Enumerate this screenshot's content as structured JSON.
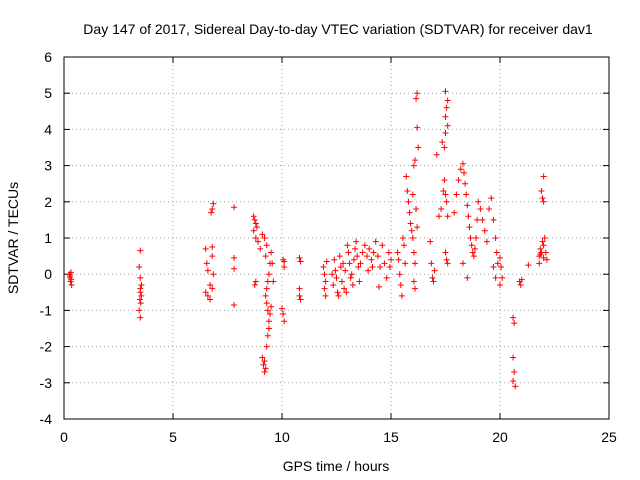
{
  "chart_data": {
    "type": "scatter",
    "title": "Day 147 of 2017, Sidereal Day-to-day VTEC variation (SDTVAR) for receiver dav1",
    "xlabel": "GPS time / hours",
    "ylabel": "SDTVAR / TECUs",
    "xlim": [
      0,
      25
    ],
    "ylim": [
      -4,
      6
    ],
    "xticks": [
      0,
      5,
      10,
      15,
      20,
      25
    ],
    "yticks": [
      -4,
      -3,
      -2,
      -1,
      0,
      1,
      2,
      3,
      4,
      5,
      6
    ],
    "xtick_labels": [
      "0",
      "5",
      "10",
      "15",
      "20",
      "25"
    ],
    "ytick_labels": [
      "-4",
      "-3",
      "-2",
      "-1",
      "0",
      "1",
      "2",
      "3",
      "4",
      "5",
      "6"
    ],
    "grid": true,
    "legend": "none",
    "marker": "+",
    "color": "#ff0000",
    "series": [
      {
        "name": "dav1",
        "points": [
          [
            0.25,
            0.0
          ],
          [
            0.28,
            -0.1
          ],
          [
            0.3,
            -0.2
          ],
          [
            0.32,
            0.05
          ],
          [
            0.35,
            -0.3
          ],
          [
            0.27,
            -0.05
          ],
          [
            0.33,
            -0.15
          ],
          [
            3.5,
            0.65
          ],
          [
            3.45,
            0.2
          ],
          [
            3.5,
            -0.1
          ],
          [
            3.55,
            -0.3
          ],
          [
            3.5,
            -0.5
          ],
          [
            3.48,
            -0.7
          ],
          [
            3.52,
            -0.8
          ],
          [
            3.45,
            -1.0
          ],
          [
            3.5,
            -1.2
          ],
          [
            3.55,
            -0.6
          ],
          [
            3.5,
            -0.4
          ],
          [
            6.5,
            0.7
          ],
          [
            6.55,
            0.3
          ],
          [
            6.6,
            0.1
          ],
          [
            6.5,
            -0.5
          ],
          [
            6.6,
            -0.6
          ],
          [
            6.7,
            -0.7
          ],
          [
            6.8,
            0.75
          ],
          [
            6.8,
            0.5
          ],
          [
            6.85,
            0.0
          ],
          [
            6.75,
            1.7
          ],
          [
            6.8,
            1.8
          ],
          [
            6.85,
            1.95
          ],
          [
            6.8,
            -0.4
          ],
          [
            6.7,
            -0.3
          ],
          [
            7.8,
            1.85
          ],
          [
            7.8,
            0.45
          ],
          [
            7.8,
            0.15
          ],
          [
            7.8,
            -0.85
          ],
          [
            8.7,
            1.6
          ],
          [
            8.75,
            1.5
          ],
          [
            8.8,
            1.4
          ],
          [
            8.85,
            1.3
          ],
          [
            8.7,
            1.2
          ],
          [
            8.8,
            1.0
          ],
          [
            8.9,
            0.9
          ],
          [
            9.0,
            0.7
          ],
          [
            8.75,
            -0.3
          ],
          [
            8.8,
            -0.2
          ],
          [
            9.1,
            1.1
          ],
          [
            9.2,
            1.0
          ],
          [
            9.3,
            0.8
          ],
          [
            9.25,
            0.5
          ],
          [
            9.1,
            -2.3
          ],
          [
            9.15,
            -2.5
          ],
          [
            9.2,
            -2.7
          ],
          [
            9.25,
            -2.6
          ],
          [
            9.2,
            -2.4
          ],
          [
            9.3,
            -2.0
          ],
          [
            9.35,
            -1.7
          ],
          [
            9.4,
            -1.5
          ],
          [
            9.4,
            -1.3
          ],
          [
            9.35,
            -1.0
          ],
          [
            9.3,
            -0.8
          ],
          [
            9.25,
            -0.6
          ],
          [
            9.3,
            -0.4
          ],
          [
            9.35,
            -0.2
          ],
          [
            9.4,
            0.0
          ],
          [
            9.45,
            0.3
          ],
          [
            9.5,
            0.6
          ],
          [
            9.55,
            0.3
          ],
          [
            9.6,
            -0.2
          ],
          [
            9.5,
            -0.9
          ],
          [
            9.45,
            -1.1
          ],
          [
            10.0,
            -0.95
          ],
          [
            10.05,
            -1.1
          ],
          [
            10.1,
            -1.3
          ],
          [
            10.1,
            0.35
          ],
          [
            10.1,
            0.2
          ],
          [
            10.05,
            0.4
          ],
          [
            10.8,
            0.45
          ],
          [
            10.85,
            0.35
          ],
          [
            10.8,
            -0.6
          ],
          [
            10.85,
            -0.7
          ],
          [
            10.8,
            -0.4
          ],
          [
            11.9,
            0.2
          ],
          [
            11.95,
            0.0
          ],
          [
            12.0,
            -0.2
          ],
          [
            11.95,
            -0.4
          ],
          [
            12.0,
            -0.6
          ],
          [
            12.05,
            0.35
          ],
          [
            12.3,
            0.0
          ],
          [
            12.35,
            -0.3
          ],
          [
            12.4,
            0.4
          ],
          [
            12.45,
            0.1
          ],
          [
            12.5,
            -0.1
          ],
          [
            12.55,
            -0.5
          ],
          [
            12.6,
            -0.6
          ],
          [
            12.65,
            0.5
          ],
          [
            12.7,
            0.2
          ],
          [
            12.75,
            -0.2
          ],
          [
            12.8,
            0.3
          ],
          [
            12.85,
            -0.4
          ],
          [
            12.9,
            0.1
          ],
          [
            12.95,
            -0.5
          ],
          [
            13.0,
            0.8
          ],
          [
            13.05,
            0.6
          ],
          [
            13.1,
            0.3
          ],
          [
            13.15,
            -0.1
          ],
          [
            13.2,
            0.0
          ],
          [
            13.25,
            -0.3
          ],
          [
            13.3,
            0.4
          ],
          [
            13.35,
            0.7
          ],
          [
            13.4,
            0.9
          ],
          [
            13.45,
            0.5
          ],
          [
            13.5,
            0.2
          ],
          [
            13.55,
            -0.2
          ],
          [
            13.6,
            0.3
          ],
          [
            13.7,
            0.6
          ],
          [
            13.8,
            0.8
          ],
          [
            13.9,
            0.5
          ],
          [
            13.95,
            0.1
          ],
          [
            14.0,
            0.7
          ],
          [
            14.1,
            0.4
          ],
          [
            14.15,
            0.2
          ],
          [
            14.2,
            0.6
          ],
          [
            14.3,
            0.9
          ],
          [
            14.4,
            0.5
          ],
          [
            14.5,
            0.2
          ],
          [
            14.6,
            0.8
          ],
          [
            14.7,
            0.3
          ],
          [
            14.8,
            -0.1
          ],
          [
            14.9,
            0.6
          ],
          [
            15.0,
            0.4
          ],
          [
            14.95,
            0.2
          ],
          [
            14.45,
            -0.35
          ],
          [
            15.3,
            0.6
          ],
          [
            15.35,
            0.4
          ],
          [
            15.4,
            0.0
          ],
          [
            15.45,
            -0.3
          ],
          [
            15.5,
            -0.6
          ],
          [
            15.55,
            1.0
          ],
          [
            15.6,
            0.8
          ],
          [
            15.65,
            0.3
          ],
          [
            15.7,
            2.7
          ],
          [
            15.75,
            2.3
          ],
          [
            15.8,
            2.0
          ],
          [
            15.85,
            1.7
          ],
          [
            15.9,
            1.4
          ],
          [
            15.95,
            1.2
          ],
          [
            16.0,
            1.0
          ],
          [
            16.05,
            0.6
          ],
          [
            16.1,
            0.3
          ],
          [
            16.0,
            2.2
          ],
          [
            16.05,
            3.0
          ],
          [
            16.1,
            3.15
          ],
          [
            16.15,
            1.8
          ],
          [
            16.2,
            1.3
          ],
          [
            16.15,
            4.85
          ],
          [
            16.2,
            5.0
          ],
          [
            16.2,
            4.05
          ],
          [
            16.25,
            3.5
          ],
          [
            16.05,
            -0.2
          ],
          [
            16.1,
            -0.4
          ],
          [
            16.8,
            0.9
          ],
          [
            16.85,
            0.3
          ],
          [
            16.9,
            -0.1
          ],
          [
            16.95,
            -0.2
          ],
          [
            17.0,
            0.1
          ],
          [
            17.1,
            3.3
          ],
          [
            17.2,
            1.6
          ],
          [
            17.3,
            1.8
          ],
          [
            17.35,
            3.65
          ],
          [
            17.4,
            2.3
          ],
          [
            17.45,
            2.6
          ],
          [
            17.5,
            4.35
          ],
          [
            17.55,
            4.6
          ],
          [
            17.6,
            4.8
          ],
          [
            17.6,
            4.1
          ],
          [
            17.5,
            3.9
          ],
          [
            17.45,
            3.5
          ],
          [
            17.5,
            2.2
          ],
          [
            17.55,
            2.0
          ],
          [
            17.6,
            1.6
          ],
          [
            17.55,
            0.4
          ],
          [
            17.6,
            0.3
          ],
          [
            17.5,
            0.6
          ],
          [
            17.5,
            5.05
          ],
          [
            17.9,
            1.7
          ],
          [
            18.0,
            2.2
          ],
          [
            18.1,
            2.6
          ],
          [
            18.2,
            2.9
          ],
          [
            18.3,
            3.05
          ],
          [
            18.35,
            2.8
          ],
          [
            18.4,
            2.5
          ],
          [
            18.45,
            2.2
          ],
          [
            18.5,
            1.9
          ],
          [
            18.55,
            1.6
          ],
          [
            18.6,
            1.3
          ],
          [
            18.65,
            1.0
          ],
          [
            18.7,
            0.8
          ],
          [
            18.75,
            0.6
          ],
          [
            18.8,
            0.5
          ],
          [
            18.85,
            0.7
          ],
          [
            18.9,
            1.0
          ],
          [
            18.95,
            1.5
          ],
          [
            19.0,
            2.0
          ],
          [
            19.1,
            1.8
          ],
          [
            19.2,
            1.5
          ],
          [
            19.3,
            1.2
          ],
          [
            19.4,
            0.9
          ],
          [
            19.5,
            1.8
          ],
          [
            19.6,
            2.1
          ],
          [
            19.7,
            1.5
          ],
          [
            19.8,
            1.0
          ],
          [
            19.85,
            0.6
          ],
          [
            19.9,
            0.3
          ],
          [
            19.8,
            -0.1
          ],
          [
            19.7,
            0.2
          ],
          [
            18.3,
            0.3
          ],
          [
            18.5,
            -0.1
          ],
          [
            20.0,
            0.45
          ],
          [
            20.05,
            0.2
          ],
          [
            20.1,
            -0.1
          ],
          [
            20.0,
            -0.3
          ],
          [
            20.6,
            -1.2
          ],
          [
            20.65,
            -1.35
          ],
          [
            20.6,
            -2.3
          ],
          [
            20.65,
            -2.7
          ],
          [
            20.6,
            -2.95
          ],
          [
            20.7,
            -3.1
          ],
          [
            20.9,
            -0.2
          ],
          [
            20.95,
            -0.3
          ],
          [
            21.0,
            -0.15
          ],
          [
            21.3,
            0.25
          ],
          [
            21.8,
            0.5
          ],
          [
            21.85,
            0.7
          ],
          [
            21.9,
            0.6
          ],
          [
            21.95,
            0.9
          ],
          [
            22.0,
            0.8
          ],
          [
            22.05,
            1.0
          ],
          [
            22.1,
            0.6
          ],
          [
            22.15,
            0.4
          ],
          [
            21.9,
            2.3
          ],
          [
            21.95,
            2.1
          ],
          [
            22.0,
            2.0
          ],
          [
            22.0,
            2.7
          ],
          [
            21.8,
            0.3
          ],
          [
            21.85,
            0.55
          ],
          [
            22.0,
            0.45
          ]
        ]
      }
    ]
  }
}
